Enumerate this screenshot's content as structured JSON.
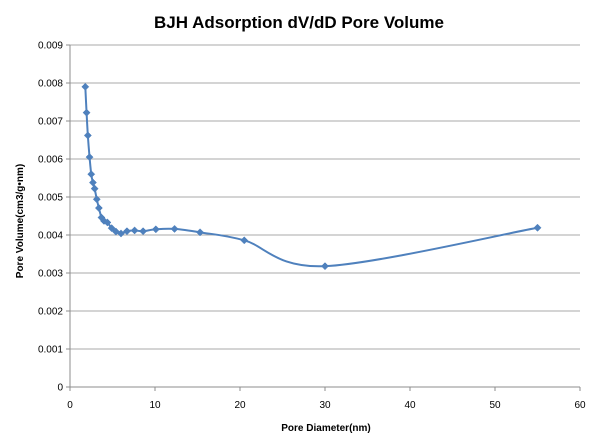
{
  "chart_data": {
    "type": "scatter",
    "title": "BJH Adsorption dV/dD Pore Volume",
    "xlabel": "Pore Diameter(nm)",
    "ylabel": "Pore Volume(cm3/g•nm)",
    "xlim": [
      0,
      60
    ],
    "ylim": [
      0,
      0.009
    ],
    "x_ticks": [
      "0",
      "10",
      "20",
      "30",
      "40",
      "50",
      "60"
    ],
    "y_ticks": [
      "0",
      "0.001",
      "0.002",
      "0.003",
      "0.004",
      "0.005",
      "0.006",
      "0.007",
      "0.008",
      "0.009"
    ],
    "grid": "horizontal",
    "legend": "none",
    "line_color": "#4f81bd",
    "marker_color": "#4f81bd",
    "smooth": true,
    "series": [
      {
        "marker": "diamond",
        "x": [
          1.8,
          1.95,
          2.1,
          2.3,
          2.5,
          2.7,
          2.9,
          3.15,
          3.4,
          3.7,
          4.0,
          4.4,
          4.9,
          5.4,
          6.0,
          6.7,
          7.6,
          8.6,
          10.1,
          12.3,
          15.3,
          20.5,
          30.0,
          55.0
        ],
        "y": [
          0.0079,
          0.00722,
          0.00662,
          0.00605,
          0.0056,
          0.00538,
          0.00522,
          0.00494,
          0.00471,
          0.00446,
          0.00437,
          0.00433,
          0.00418,
          0.00409,
          0.00404,
          0.0041,
          0.00412,
          0.0041,
          0.00415,
          0.00416,
          0.00407,
          0.00386,
          0.00318,
          0.00419
        ]
      }
    ]
  }
}
